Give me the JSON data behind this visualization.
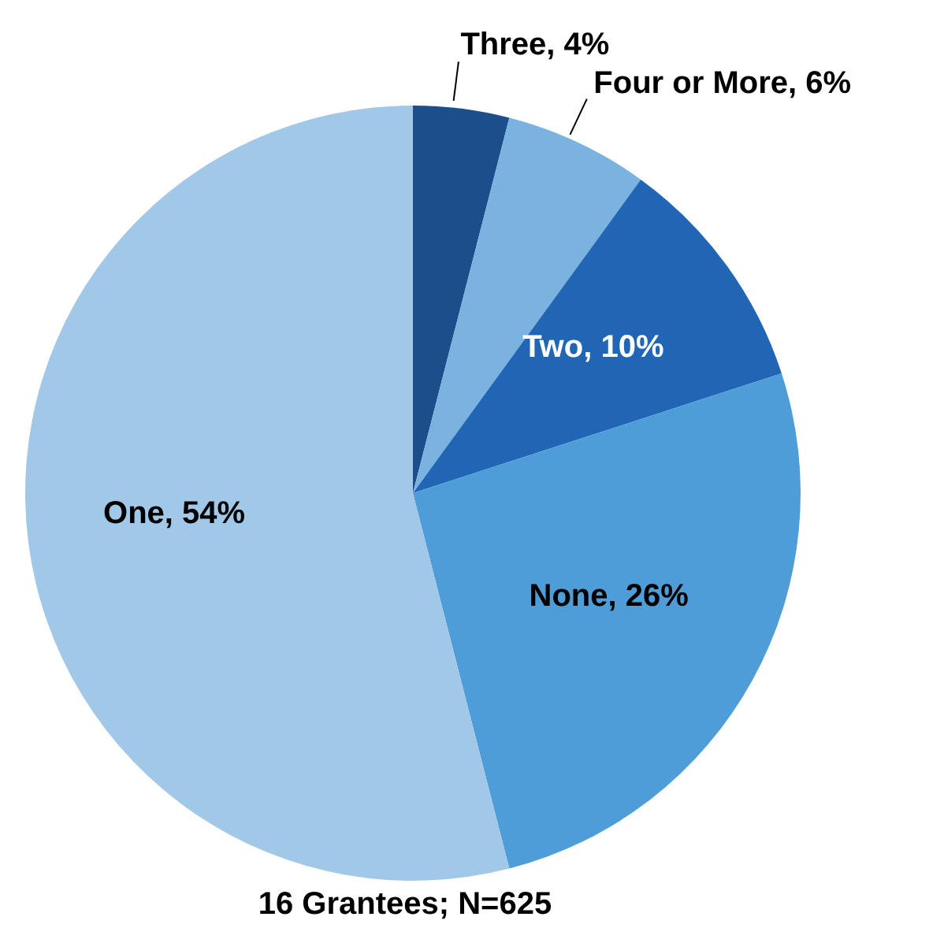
{
  "chart_data": {
    "type": "pie",
    "categories": [
      "Three",
      "Four or More",
      "Two",
      "None",
      "One"
    ],
    "values": [
      4,
      6,
      10,
      26,
      54
    ],
    "value_labels": [
      "4%",
      "6%",
      "10%",
      "26%",
      "54%"
    ],
    "colors": [
      "#1b4e8b",
      "#7bb3e0",
      "#2166b5",
      "#4e9dd8",
      "#a2c8e8"
    ],
    "annotations": [
      "16 Grantees; N=625"
    ],
    "legend": false
  }
}
